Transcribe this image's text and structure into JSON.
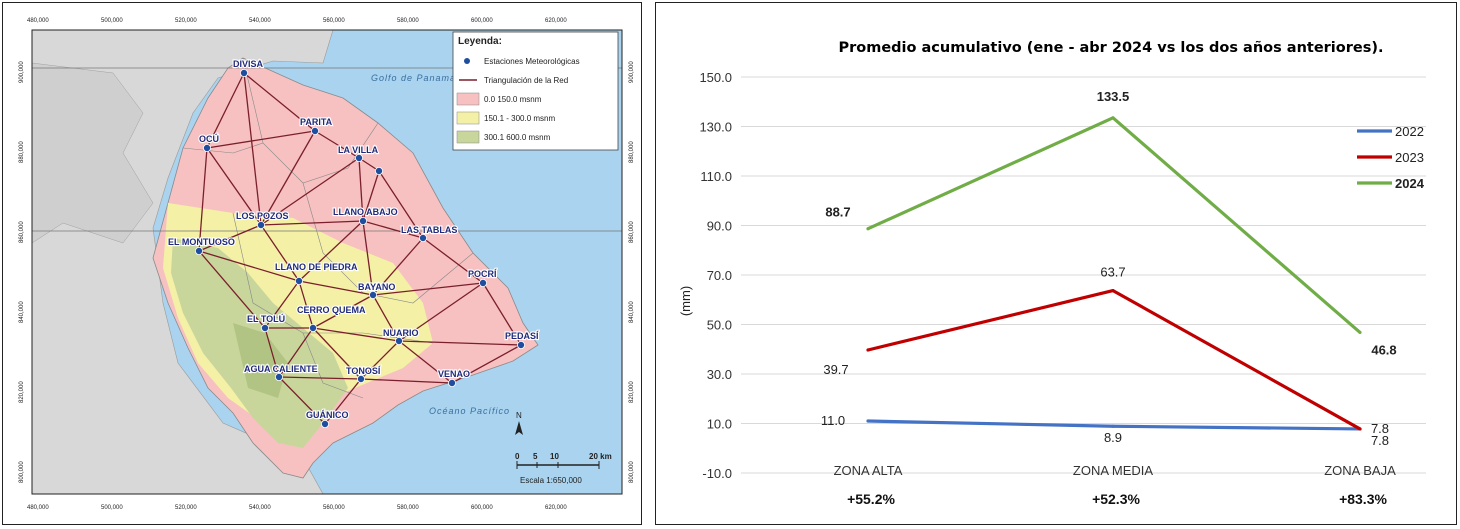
{
  "map": {
    "top_ticks": [
      "480,000",
      "500,000",
      "520,000",
      "540,000",
      "560,000",
      "580,000",
      "600,000",
      "620,000"
    ],
    "side_ticks": [
      "900,000",
      "880,000",
      "860,000",
      "840,000",
      "820,000",
      "800,000"
    ],
    "gulf_label": "Golfo de Panamá",
    "ocean_label": "Océano Pacífico",
    "legend": {
      "title": "Leyenda:",
      "stations": "Estaciones Meteorológicas",
      "network": "Triangulación de la Red",
      "band1": "0.0 150.0 msnm",
      "band2": "150.1 - 300.0 msnm",
      "band3": "300.1 600.0 msnm"
    },
    "stations": [
      "DIVISA",
      "PARITA",
      "OCÚ",
      "LA VILLA",
      "LOS POZOS",
      "LLANO ABAJO",
      "LAS TABLAS",
      "EL MONTUOSO",
      "LLANO DE PIEDRA",
      "BAYANO",
      "POCRÍ",
      "EL TOLÚ",
      "CERRO QUEMA",
      "NUARIO",
      "PEDASÍ",
      "AGUA CALIENTE",
      "TONOSÍ",
      "VENAO",
      "GUÁNICO"
    ],
    "scale_numbers": [
      "0",
      "5",
      "10",
      "20 km"
    ],
    "scale_label": "Escala 1:650,000",
    "north": "N",
    "colors": {
      "sea": "#a9d3ee",
      "land_outside": "#d8d8d8",
      "band1": "#f7c1c1",
      "band2": "#f4f0a6",
      "band3": "#c8d69c",
      "network": "#7a1f2b",
      "station": "#1f4e9e"
    }
  },
  "chart_data": {
    "type": "line",
    "title": "Promedio acumulativo (ene - abr 2024 vs los dos años anteriores).",
    "categories": [
      "ZONA ALTA",
      "ZONA MEDIA",
      "ZONA BAJA"
    ],
    "ylabel": "(mm)",
    "ylim": [
      -10,
      150
    ],
    "yticks": [
      "150.0",
      "130.0",
      "110.0",
      "90.0",
      "70.0",
      "50.0",
      "30.0",
      "10.0",
      "-10.0"
    ],
    "series": [
      {
        "name": "2022",
        "color": "#4472c4",
        "values": [
          11.0,
          8.9,
          7.8
        ],
        "labels": [
          "11.0",
          "8.9",
          "7.8"
        ]
      },
      {
        "name": "2023",
        "color": "#c00000",
        "values": [
          39.7,
          63.7,
          7.8
        ],
        "labels": [
          "39.7",
          "63.7",
          "7.8"
        ]
      },
      {
        "name": "2024",
        "color": "#70ad47",
        "values": [
          88.7,
          133.5,
          46.8
        ],
        "labels": [
          "88.7",
          "133.5",
          "46.8"
        ]
      }
    ],
    "percent_changes": [
      "+55.2%",
      "+52.3%",
      "+83.3%"
    ],
    "grid": true,
    "legend_position": "right"
  }
}
